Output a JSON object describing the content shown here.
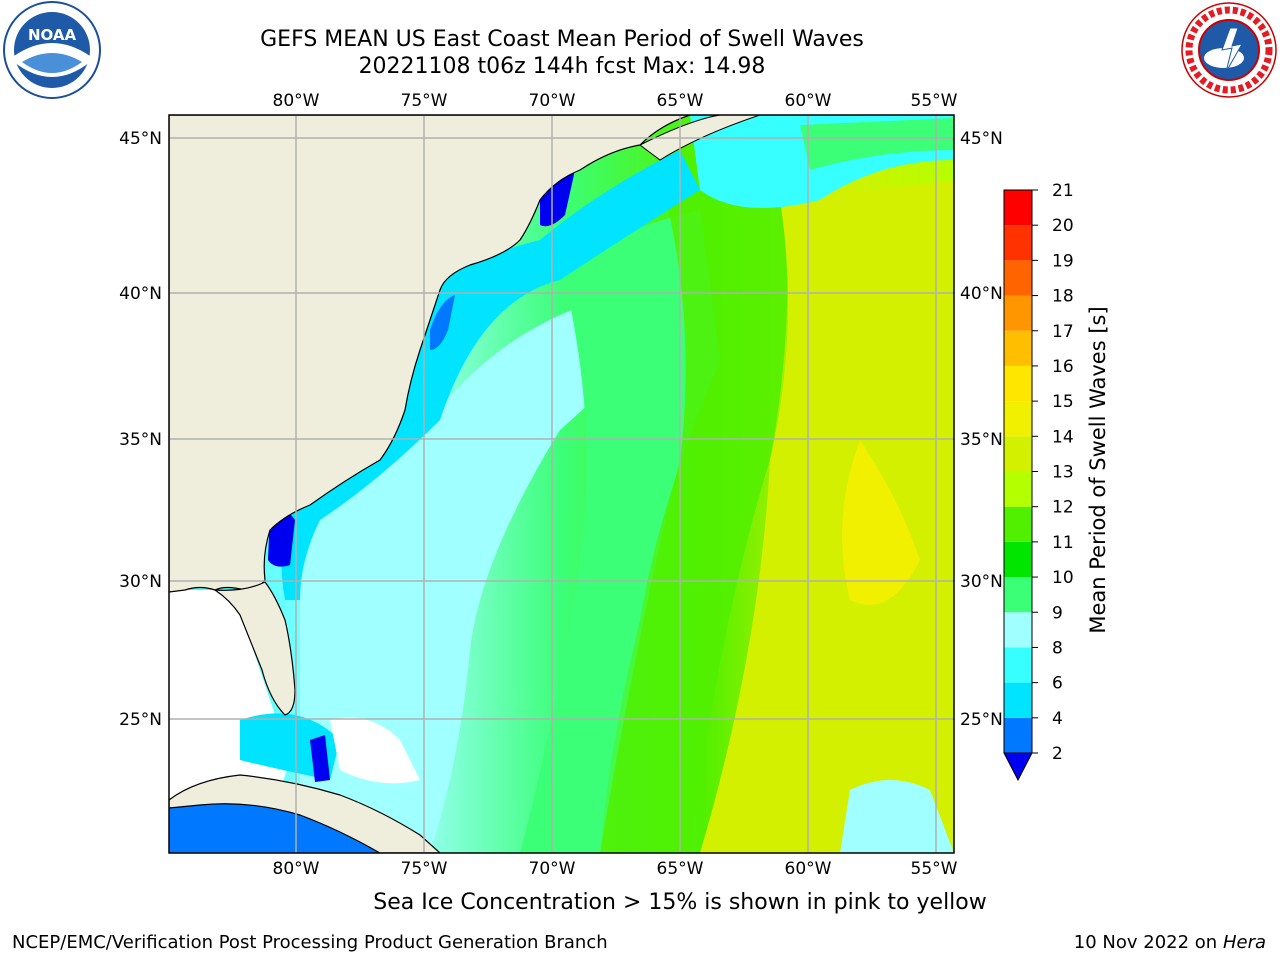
{
  "header": {
    "title_line1": "GEFS MEAN US East Coast Mean Period of Swell Waves",
    "title_line2": "20221108 t06z 144h fcst   Max: 14.98"
  },
  "logos": {
    "left": {
      "icon": "noaa-logo",
      "text": "NOAA"
    },
    "right": {
      "icon": "nws-logo",
      "text": "NATIONAL WEATHER SERVICE"
    }
  },
  "map": {
    "lon_labels": [
      "80°W",
      "75°W",
      "70°W",
      "65°W",
      "60°W",
      "55°W"
    ],
    "lat_labels": [
      "45°N",
      "40°N",
      "35°N",
      "30°N",
      "25°N"
    ],
    "land_color": "#efeedd",
    "grid_color": "#b0b0b0"
  },
  "colorbar": {
    "label": "Mean Period of Swell Waves [s]",
    "ticks": [
      "2",
      "4",
      "6",
      "8",
      "9",
      "10",
      "11",
      "12",
      "13",
      "14",
      "15",
      "16",
      "17",
      "18",
      "19",
      "20",
      "21"
    ],
    "colors": [
      "#0000f0",
      "#0078ff",
      "#00e4ff",
      "#38ffff",
      "#a0ffff",
      "#3cff78",
      "#00e600",
      "#50f000",
      "#b4ff00",
      "#d2f000",
      "#f0f000",
      "#ffe600",
      "#ffbe00",
      "#ff9600",
      "#ff6400",
      "#ff3200",
      "#ff0000"
    ]
  },
  "caption": "Sea Ice Concentration > 15% is shown in pink to yellow",
  "footer": {
    "left": "NCEP/EMC/Verification Post Processing Product Generation Branch",
    "right_date": "10 Nov 2022 on",
    "right_host": "Hera"
  }
}
